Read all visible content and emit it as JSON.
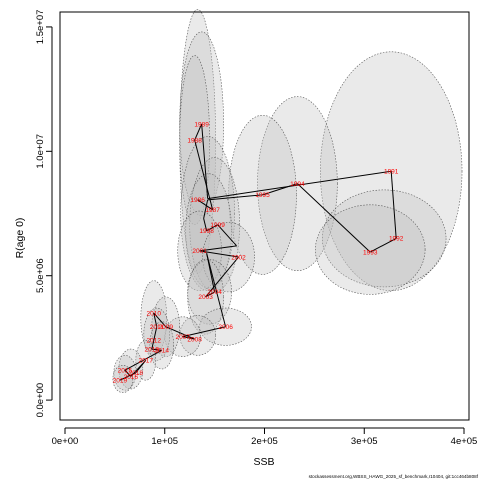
{
  "chart_data": {
    "type": "scatter",
    "title": "",
    "xlabel": "SSB",
    "ylabel": "R(age 0)",
    "xlim": [
      -5000,
      405000
    ],
    "ylim": [
      -800000,
      15600000
    ],
    "xticks": [
      {
        "value": 0,
        "label": "0e+00"
      },
      {
        "value": 100000,
        "label": "1e+05"
      },
      {
        "value": 200000,
        "label": "2e+05"
      },
      {
        "value": 300000,
        "label": "3e+05"
      },
      {
        "value": 400000,
        "label": "4e+05"
      }
    ],
    "yticks": [
      {
        "value": 0,
        "label": "0.0e+00"
      },
      {
        "value": 5000000,
        "label": "5.0e+06"
      },
      {
        "value": 10000000,
        "label": "1.0e+07"
      },
      {
        "value": 15000000,
        "label": "1.5e+07"
      }
    ],
    "grid": false,
    "line_color": "#000000",
    "label_color": "#ff0000",
    "ellipse_fill": "#bebebe",
    "series": [
      {
        "points": [
          {
            "year": "1989",
            "ssb": 137000,
            "rec": 11100000
          },
          {
            "year": "1988",
            "ssb": 130000,
            "rec": 10450000
          },
          {
            "year": "1991",
            "ssb": 327000,
            "rec": 9200000
          },
          {
            "year": "1994",
            "ssb": 233000,
            "rec": 8700000
          },
          {
            "year": "1995",
            "ssb": 198000,
            "rec": 8250000
          },
          {
            "year": "1986",
            "ssb": 133000,
            "rec": 8050000
          },
          {
            "year": "1987",
            "ssb": 148000,
            "rec": 7650000
          },
          {
            "year": "1992",
            "ssb": 332000,
            "rec": 6500000
          },
          {
            "year": "1993",
            "ssb": 306000,
            "rec": 5950000
          },
          {
            "year": "1999",
            "ssb": 153000,
            "rec": 7050000
          },
          {
            "year": "1998",
            "ssb": 142000,
            "rec": 6800000
          },
          {
            "year": "2001",
            "ssb": 135000,
            "rec": 6000000
          },
          {
            "year": "2002",
            "ssb": 174000,
            "rec": 5750000
          },
          {
            "year": "2004",
            "ssb": 150000,
            "rec": 4350000
          },
          {
            "year": "2003",
            "ssb": 141000,
            "rec": 4150000
          },
          {
            "year": "2006",
            "ssb": 161000,
            "rec": 2950000
          },
          {
            "year": "2010",
            "ssb": 89000,
            "rec": 3500000
          },
          {
            "year": "2009",
            "ssb": 101000,
            "rec": 2950000
          },
          {
            "year": "2011",
            "ssb": 92000,
            "rec": 2950000
          },
          {
            "year": "2007",
            "ssb": 118000,
            "rec": 2550000
          },
          {
            "year": "2008",
            "ssb": 130000,
            "rec": 2450000
          },
          {
            "year": "2012",
            "ssb": 89000,
            "rec": 2400000
          },
          {
            "year": "2013",
            "ssb": 87000,
            "rec": 2050000
          },
          {
            "year": "2014",
            "ssb": 97000,
            "rec": 2000000
          },
          {
            "year": "2017",
            "ssb": 81000,
            "rec": 1600000
          },
          {
            "year": "2015",
            "ssb": 60000,
            "rec": 1200000
          },
          {
            "year": "2018",
            "ssb": 71000,
            "rec": 1100000
          },
          {
            "year": "2016",
            "ssb": 66000,
            "rec": 950000
          },
          {
            "year": "2019",
            "ssb": 55000,
            "rec": 800000
          }
        ]
      }
    ],
    "trajectory": [
      "1986",
      "1987",
      "1988",
      "1989",
      "1990",
      "1991",
      "1992",
      "1993",
      "1994",
      "1995",
      "1996",
      "1997",
      "1998",
      "1999",
      "2000",
      "2001",
      "2002",
      "2003",
      "2004",
      "2005",
      "2006",
      "2007",
      "2008",
      "2009",
      "2010",
      "2011",
      "2012",
      "2013",
      "2014",
      "2015",
      "2016",
      "2017",
      "2018",
      "2019"
    ],
    "trajectory_values": [
      {
        "year": "1986",
        "ssb": 133000,
        "rec": 8050000
      },
      {
        "year": "1987",
        "ssb": 148000,
        "rec": 7650000
      },
      {
        "year": "1988",
        "ssb": 130000,
        "rec": 10450000
      },
      {
        "year": "1989",
        "ssb": 137000,
        "rec": 11100000
      },
      {
        "year": "1990",
        "ssb": 143000,
        "rec": 8100000
      },
      {
        "year": "1991",
        "ssb": 327000,
        "rec": 9200000
      },
      {
        "year": "1992",
        "ssb": 332000,
        "rec": 6500000
      },
      {
        "year": "1993",
        "ssb": 306000,
        "rec": 5950000
      },
      {
        "year": "1994",
        "ssb": 233000,
        "rec": 8700000
      },
      {
        "year": "1995",
        "ssb": 198000,
        "rec": 8250000
      },
      {
        "year": "1996",
        "ssb": 143000,
        "rec": 8050000
      },
      {
        "year": "1997",
        "ssb": 139000,
        "rec": 7300000
      },
      {
        "year": "1998",
        "ssb": 142000,
        "rec": 6800000
      },
      {
        "year": "1999",
        "ssb": 153000,
        "rec": 7050000
      },
      {
        "year": "2000",
        "ssb": 172000,
        "rec": 6200000
      },
      {
        "year": "2001",
        "ssb": 135000,
        "rec": 6000000
      },
      {
        "year": "2002",
        "ssb": 174000,
        "rec": 5750000
      },
      {
        "year": "2003",
        "ssb": 141000,
        "rec": 4150000
      },
      {
        "year": "2004",
        "ssb": 150000,
        "rec": 4350000
      },
      {
        "year": "2005",
        "ssb": 142000,
        "rec": 5900000
      },
      {
        "year": "2006",
        "ssb": 161000,
        "rec": 2950000
      },
      {
        "year": "2007",
        "ssb": 118000,
        "rec": 2550000
      },
      {
        "year": "2008",
        "ssb": 130000,
        "rec": 2450000
      },
      {
        "year": "2009",
        "ssb": 101000,
        "rec": 2950000
      },
      {
        "year": "2010",
        "ssb": 89000,
        "rec": 3500000
      },
      {
        "year": "2011",
        "ssb": 92000,
        "rec": 2950000
      },
      {
        "year": "2012",
        "ssb": 89000,
        "rec": 2400000
      },
      {
        "year": "2013",
        "ssb": 87000,
        "rec": 2050000
      },
      {
        "year": "2014",
        "ssb": 97000,
        "rec": 2000000
      },
      {
        "year": "2015",
        "ssb": 60000,
        "rec": 1200000
      },
      {
        "year": "2016",
        "ssb": 66000,
        "rec": 950000
      },
      {
        "year": "2017",
        "ssb": 81000,
        "rec": 1600000
      },
      {
        "year": "2018",
        "ssb": 71000,
        "rec": 1100000
      },
      {
        "year": "2019",
        "ssb": 55000,
        "rec": 800000
      }
    ],
    "uncertainty_ellipses": [
      {
        "ssb": 133000,
        "rec": 10400000,
        "ssb_halfwidth": 18000,
        "rec_halfheight": 5300000
      },
      {
        "ssb": 137000,
        "rec": 11100000,
        "ssb_halfwidth": 22000,
        "rec_halfheight": 3700000
      },
      {
        "ssb": 130000,
        "rec": 10450000,
        "ssb_halfwidth": 15000,
        "rec_halfheight": 3400000
      },
      {
        "ssb": 327000,
        "rec": 9200000,
        "ssb_halfwidth": 71000,
        "rec_halfheight": 4800000
      },
      {
        "ssb": 233000,
        "rec": 8700000,
        "ssb_halfwidth": 40000,
        "rec_halfheight": 3500000
      },
      {
        "ssb": 198000,
        "rec": 8250000,
        "ssb_halfwidth": 34000,
        "rec_halfheight": 3200000
      },
      {
        "ssb": 320000,
        "rec": 6500000,
        "ssb_halfwidth": 62000,
        "rec_halfheight": 1950000
      },
      {
        "ssb": 306000,
        "rec": 6050000,
        "ssb_halfwidth": 55000,
        "rec_halfheight": 1800000
      },
      {
        "ssb": 143000,
        "rec": 7500000,
        "ssb_halfwidth": 27000,
        "rec_halfheight": 3100000
      },
      {
        "ssb": 150000,
        "rec": 7050000,
        "ssb_halfwidth": 25000,
        "rec_halfheight": 2700000
      },
      {
        "ssb": 144000,
        "rec": 6800000,
        "ssb_halfwidth": 23000,
        "rec_halfheight": 2300000
      },
      {
        "ssb": 135000,
        "rec": 6000000,
        "ssb_halfwidth": 22000,
        "rec_halfheight": 1600000
      },
      {
        "ssb": 164000,
        "rec": 5750000,
        "ssb_halfwidth": 26000,
        "rec_halfheight": 1400000
      },
      {
        "ssb": 145000,
        "rec": 4350000,
        "ssb_halfwidth": 22000,
        "rec_halfheight": 1300000
      },
      {
        "ssb": 141000,
        "rec": 4150000,
        "ssb_halfwidth": 18000,
        "rec_halfheight": 1500000
      },
      {
        "ssb": 161000,
        "rec": 2950000,
        "ssb_halfwidth": 26000,
        "rec_halfheight": 750000
      },
      {
        "ssb": 133000,
        "rec": 2600000,
        "ssb_halfwidth": 18000,
        "rec_halfheight": 800000
      },
      {
        "ssb": 118000,
        "rec": 2550000,
        "ssb_halfwidth": 18000,
        "rec_halfheight": 800000
      },
      {
        "ssb": 89000,
        "rec": 3300000,
        "ssb_halfwidth": 13000,
        "rec_halfheight": 1500000
      },
      {
        "ssb": 101000,
        "rec": 2950000,
        "ssb_halfwidth": 14000,
        "rec_halfheight": 1200000
      },
      {
        "ssb": 92000,
        "rec": 2650000,
        "ssb_halfwidth": 13000,
        "rec_halfheight": 1050000
      },
      {
        "ssb": 97000,
        "rec": 2200000,
        "ssb_halfwidth": 12000,
        "rec_halfheight": 950000
      },
      {
        "ssb": 81000,
        "rec": 1600000,
        "ssb_halfwidth": 10000,
        "rec_halfheight": 800000
      },
      {
        "ssb": 66000,
        "rec": 1250000,
        "ssb_halfwidth": 12000,
        "rec_halfheight": 800000
      },
      {
        "ssb": 60000,
        "rec": 1100000,
        "ssb_halfwidth": 11000,
        "rec_halfheight": 700000
      },
      {
        "ssb": 58000,
        "rec": 850000,
        "ssb_halfwidth": 10000,
        "rec_halfheight": 550000
      }
    ]
  },
  "footer_text": "stockassessment.org,WBSS_HAWG_2025_sf_benchmark,r10404, git:1cc464b808f"
}
